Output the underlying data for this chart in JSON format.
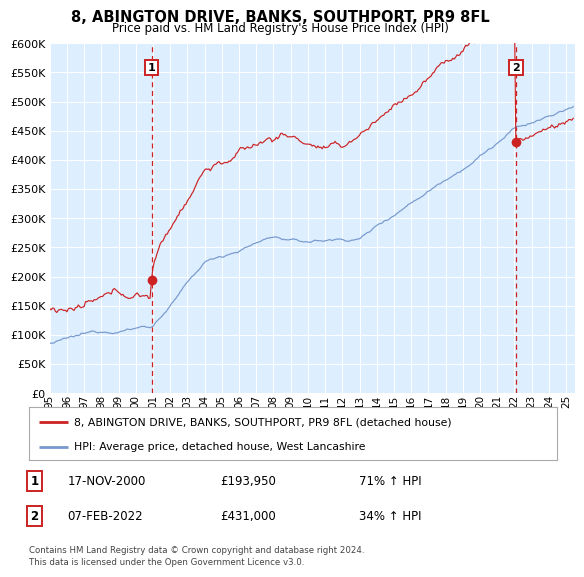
{
  "title": "8, ABINGTON DRIVE, BANKS, SOUTHPORT, PR9 8FL",
  "subtitle": "Price paid vs. HM Land Registry's House Price Index (HPI)",
  "ylim": [
    0,
    600000
  ],
  "yticks": [
    0,
    50000,
    100000,
    150000,
    200000,
    250000,
    300000,
    350000,
    400000,
    450000,
    500000,
    550000,
    600000
  ],
  "xlim_start": 1995.0,
  "xlim_end": 2025.5,
  "bg_color": "#ddeeff",
  "red_line_color": "#cc2222",
  "blue_line_color": "#7799cc",
  "dashed_color": "#cc2222",
  "sale1_x": 2000.88,
  "sale1_y": 193950,
  "sale1_label": "1",
  "sale1_date": "17-NOV-2000",
  "sale1_price": "£193,950",
  "sale1_hpi": "71% ↑ HPI",
  "sale2_x": 2022.08,
  "sale2_y": 431000,
  "sale2_label": "2",
  "sale2_date": "07-FEB-2022",
  "sale2_price": "£431,000",
  "sale2_hpi": "34% ↑ HPI",
  "legend_line1": "8, ABINGTON DRIVE, BANKS, SOUTHPORT, PR9 8FL (detached house)",
  "legend_line2": "HPI: Average price, detached house, West Lancashire",
  "footer": "Contains HM Land Registry data © Crown copyright and database right 2024.\nThis data is licensed under the Open Government Licence v3.0."
}
